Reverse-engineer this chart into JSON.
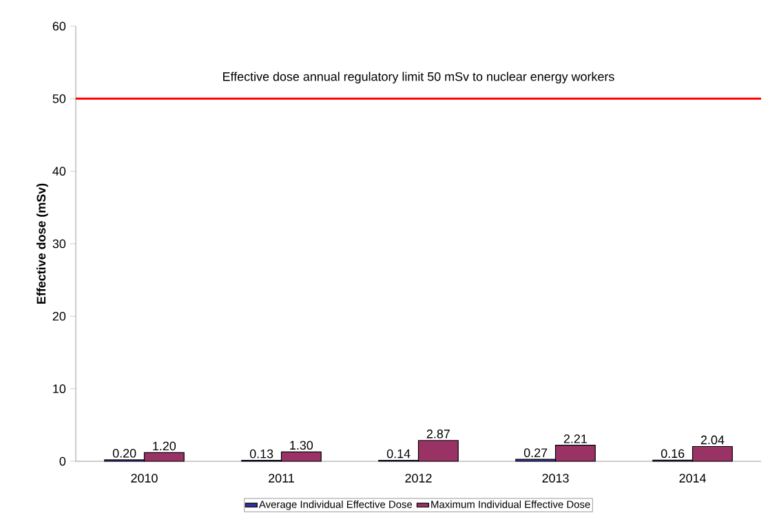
{
  "chart_data": {
    "type": "bar",
    "ylabel": "Effective dose (mSv)",
    "categories": [
      "2010",
      "2011",
      "2012",
      "2013",
      "2014"
    ],
    "series": [
      {
        "name": "Average Individual Effective Dose",
        "color": "#333399",
        "values": [
          0.2,
          0.13,
          0.14,
          0.27,
          0.16
        ],
        "value_labels": [
          "0.20",
          "0.13",
          "0.14",
          "0.27",
          "0.16"
        ]
      },
      {
        "name": "Maximum Individual Effective Dose",
        "color": "#993366",
        "values": [
          1.2,
          1.3,
          2.87,
          2.21,
          2.04
        ],
        "value_labels": [
          "1.20",
          "1.30",
          "2.87",
          "2.21",
          "2.04"
        ]
      }
    ],
    "ylim": [
      0,
      60
    ],
    "yticks": [
      0,
      10,
      20,
      30,
      40,
      50,
      60
    ],
    "ref_lines": [
      {
        "axis": "y",
        "value": 50,
        "label": "Effective dose annual regulatory limit 50 mSv to nuclear energy workers",
        "color": "#ff0000",
        "line_style": "solid"
      }
    ],
    "legend": "bottom",
    "grid": false
  }
}
